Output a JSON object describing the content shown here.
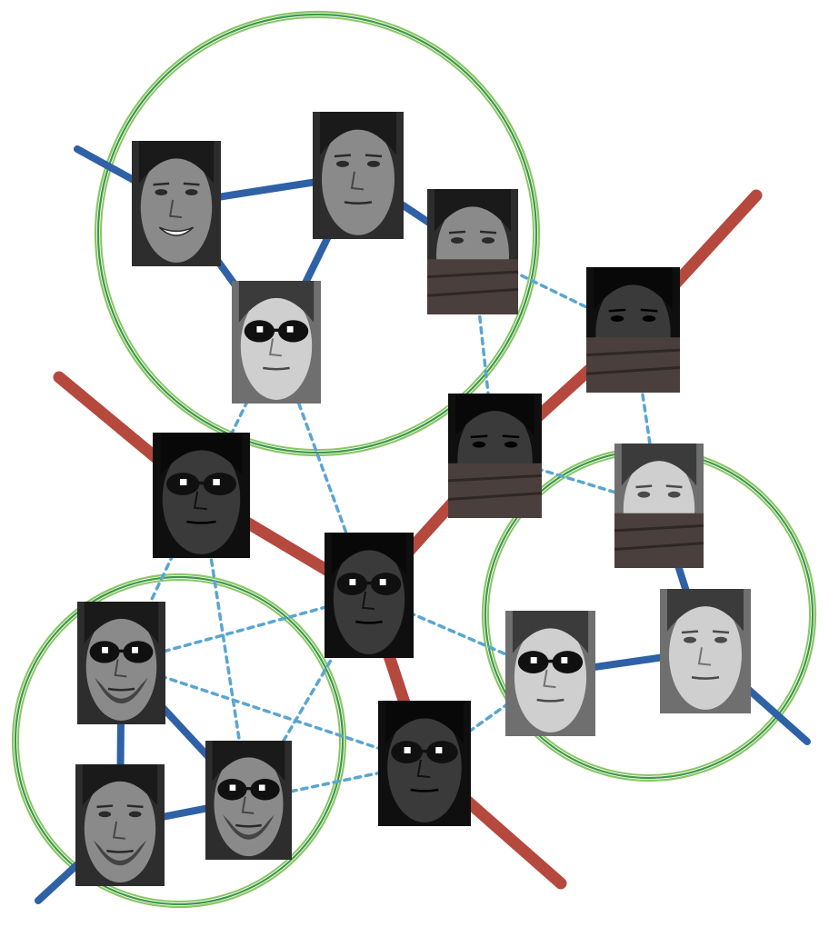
{
  "colors": {
    "background": "#ffffff",
    "cluster_ring_outer": "#8cc565",
    "cluster_ring_inner": "#3a9a48",
    "same_identity_edge": "#2f61a6",
    "same_occlusion_edge": "#b5493e",
    "cross_link": "#5aa5d1",
    "face_dark": "#1c1c1c",
    "face_mid": "#6a6a6a",
    "face_light": "#c9c9c9",
    "sunglasses": "#101010",
    "scarf": "#4a3f3d"
  },
  "clusters": [
    "cluster-top-left",
    "cluster-right",
    "cluster-bottom-left"
  ],
  "faces": [
    {
      "id": "f1",
      "cluster": "cluster-top-left",
      "occlusion": "none",
      "expression": "smile",
      "tone": "mid"
    },
    {
      "id": "f2",
      "cluster": "cluster-top-left",
      "occlusion": "none",
      "expression": "neutral",
      "tone": "mid"
    },
    {
      "id": "f3",
      "cluster": "cluster-top-left",
      "occlusion": "scarf",
      "expression": "neutral",
      "tone": "mid"
    },
    {
      "id": "f4",
      "cluster": "cluster-top-left",
      "occlusion": "sunglasses",
      "expression": "neutral",
      "tone": "light"
    },
    {
      "id": "f5",
      "cluster": "none",
      "occlusion": "scarf",
      "expression": "neutral",
      "tone": "dark"
    },
    {
      "id": "f6",
      "cluster": "none",
      "occlusion": "scarf",
      "expression": "neutral",
      "tone": "dark"
    },
    {
      "id": "f7",
      "cluster": "none",
      "occlusion": "sunglasses",
      "expression": "neutral",
      "tone": "dark"
    },
    {
      "id": "f8",
      "cluster": "none",
      "occlusion": "sunglasses",
      "expression": "neutral",
      "tone": "dark"
    },
    {
      "id": "f9",
      "cluster": "none",
      "occlusion": "sunglasses",
      "expression": "neutral",
      "tone": "dark"
    },
    {
      "id": "f10",
      "cluster": "cluster-right",
      "occlusion": "scarf",
      "expression": "neutral",
      "tone": "light"
    },
    {
      "id": "f11",
      "cluster": "cluster-right",
      "occlusion": "sunglasses",
      "expression": "neutral",
      "tone": "light"
    },
    {
      "id": "f12",
      "cluster": "cluster-right",
      "occlusion": "none",
      "expression": "neutral",
      "tone": "light"
    },
    {
      "id": "f13",
      "cluster": "cluster-bottom-left",
      "occlusion": "sunglasses",
      "expression": "neutral",
      "tone": "mid",
      "beard": true
    },
    {
      "id": "f14",
      "cluster": "cluster-bottom-left",
      "occlusion": "none",
      "expression": "neutral",
      "tone": "mid",
      "beard": true
    },
    {
      "id": "f15",
      "cluster": "cluster-bottom-left",
      "occlusion": "sunglasses",
      "expression": "neutral",
      "tone": "mid",
      "beard": true
    }
  ],
  "same_identity_edges": [
    [
      "f1",
      "f2"
    ],
    [
      "f1",
      "f4"
    ],
    [
      "f2",
      "f4"
    ],
    [
      "f2",
      "f3"
    ],
    [
      "f10",
      "f12"
    ],
    [
      "f11",
      "f12"
    ],
    [
      "f13",
      "f14"
    ],
    [
      "f13",
      "f15"
    ],
    [
      "f14",
      "f15"
    ]
  ],
  "same_occlusion_edges": [
    [
      "f6",
      "f5"
    ],
    [
      "f5",
      "f8"
    ],
    [
      "f7",
      "f8"
    ],
    [
      "f8",
      "f9"
    ]
  ],
  "cross_links": [
    [
      "f3",
      "f6"
    ],
    [
      "f3",
      "f5"
    ],
    [
      "f6",
      "f10"
    ],
    [
      "f5",
      "f10"
    ],
    [
      "f4",
      "f7"
    ],
    [
      "f4",
      "f8"
    ],
    [
      "f7",
      "f13"
    ],
    [
      "f7",
      "f15"
    ],
    [
      "f8",
      "f11"
    ],
    [
      "f8",
      "f13"
    ],
    [
      "f8",
      "f15"
    ],
    [
      "f9",
      "f11"
    ],
    [
      "f9",
      "f13"
    ],
    [
      "f9",
      "f15"
    ]
  ]
}
